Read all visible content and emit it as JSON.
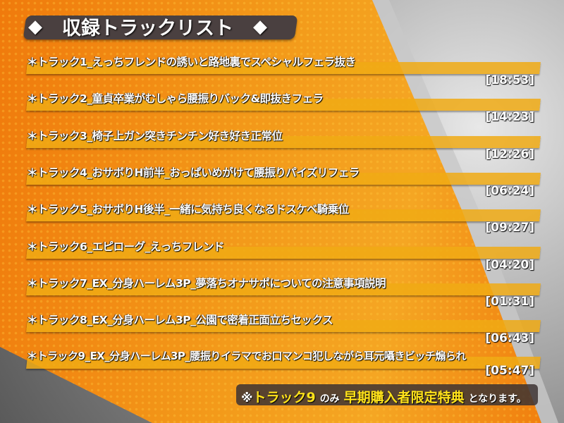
{
  "title": {
    "text": "収録トラックリスト",
    "diamond": "◆"
  },
  "tracks": [
    {
      "name": "＊トラック1_えっちフレンドの誘いと路地裏でスペシャルフェラ抜き",
      "duration": "[18:53]"
    },
    {
      "name": "＊トラック2_童貞卒業がむしゃら腰振りバック&即抜きフェラ",
      "duration": "[14:23]"
    },
    {
      "name": "＊トラック3_椅子上ガン突きチンチン好き好き正常位",
      "duration": "[12:26]"
    },
    {
      "name": "＊トラック4_おサボりH前半_おっぱいめがけて腰振りパイズリフェラ",
      "duration": "[06:24]"
    },
    {
      "name": "＊トラック5_おサボりH後半_一緒に気持ち良くなるドスケベ騎乗位",
      "duration": "[09:27]"
    },
    {
      "name": "＊トラック6_エピローグ_えっちフレンド",
      "duration": "[04:20]"
    },
    {
      "name": "＊トラック7_EX_分身ハーレム3P_夢落ちオナサポについての注意事項説明",
      "duration": "[01:31]"
    },
    {
      "name": "＊トラック8_EX_分身ハーレム3P_公園で密着正面立ちセックス",
      "duration": "[06:43]"
    },
    {
      "name": "＊トラック9_EX_分身ハーレム3P_腰振りイラマでお口マンコ犯しながら耳元囁きビッチ煽られ",
      "duration": "[05:47]"
    }
  ],
  "note": {
    "prefix": "※",
    "track": "トラック9",
    "mid": "のみ",
    "bonus": "早期購入者限定特典",
    "suffix": "となります。"
  },
  "colors": {
    "orange": "#f07a0c",
    "bar": "#f0aa14",
    "highlight": "#ffe21a",
    "banner": "#4a4040"
  }
}
